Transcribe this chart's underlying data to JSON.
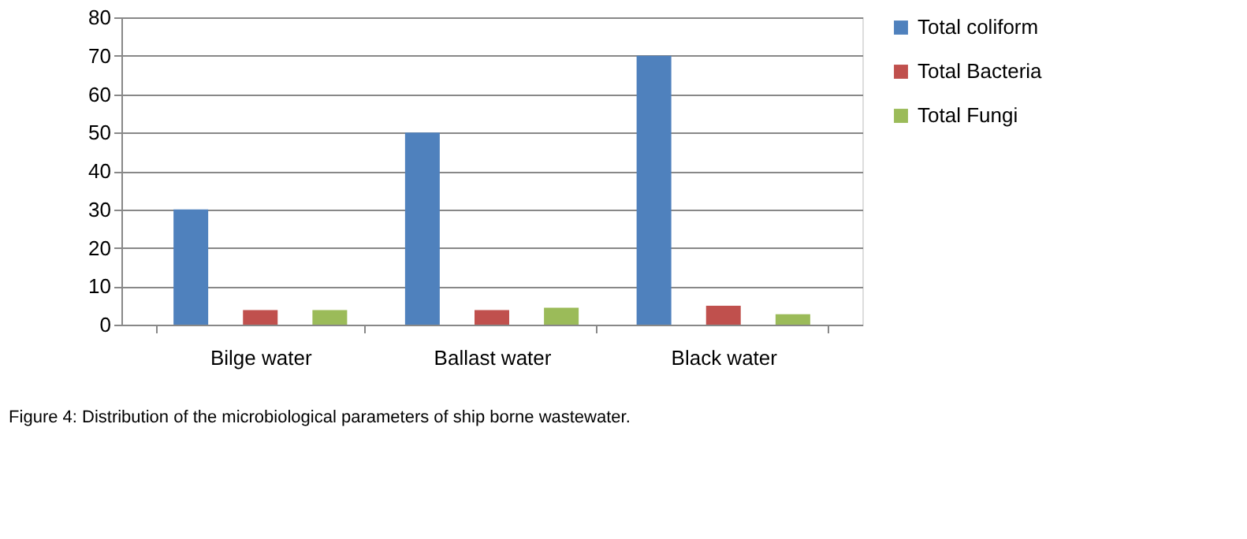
{
  "chart_data": {
    "type": "bar",
    "categories": [
      "Bilge water",
      "Ballast water",
      "Black water"
    ],
    "series": [
      {
        "name": "Total coliform",
        "color": "#4f81bd",
        "values": [
          30,
          50,
          70
        ]
      },
      {
        "name": "Total Bacteria",
        "color": "#c0504d",
        "values": [
          3.8,
          3.8,
          4.9
        ]
      },
      {
        "name": "Total Fungi",
        "color": "#9bbb59",
        "values": [
          3.8,
          4.4,
          2.7
        ]
      }
    ],
    "ylim": [
      0,
      80
    ],
    "yticks": [
      0,
      10,
      20,
      30,
      40,
      50,
      60,
      70,
      80
    ],
    "grid": "y",
    "legend": "right",
    "annotations": [
      "Figure 4: Distribution of the microbiological parameters of ship borne wastewater."
    ]
  }
}
